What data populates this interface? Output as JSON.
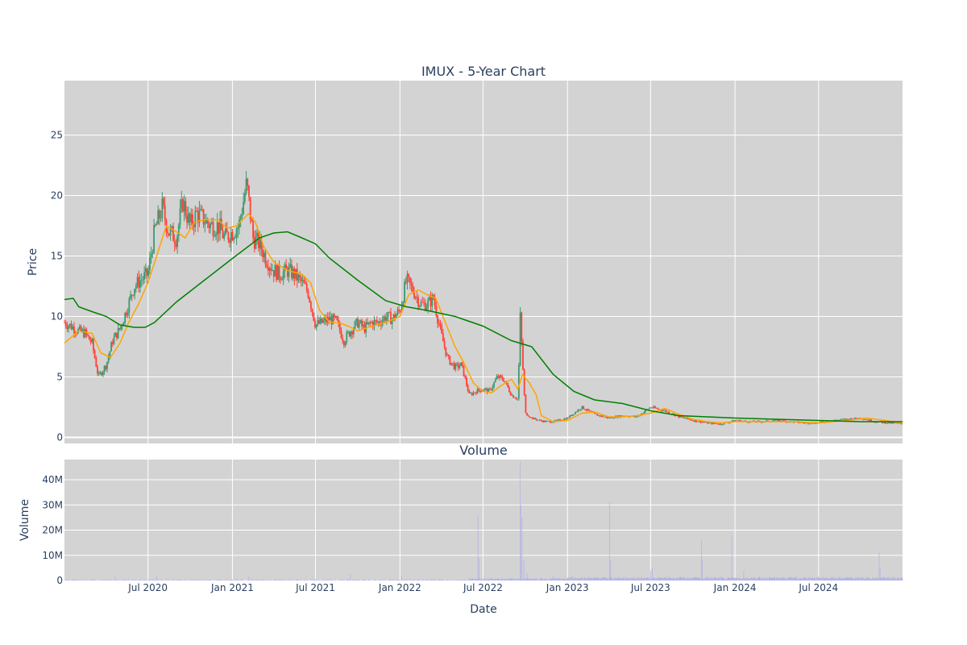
{
  "chart_data": [
    {
      "type": "candlestick",
      "title": "IMUX - 5-Year Chart",
      "xlabel": "",
      "ylabel": "Price",
      "ylim": [
        -0.5,
        29.5
      ],
      "yticks": [
        0,
        5,
        10,
        15,
        20,
        25
      ],
      "xticks": [
        "Jul 2020",
        "Jan 2021",
        "Jul 2021",
        "Jan 2022",
        "Jul 2022",
        "Jan 2023",
        "Jul 2023",
        "Jan 2024",
        "Jul 2024"
      ],
      "grid": true,
      "up_color": "#3d9970",
      "down_color": "#ff4136",
      "background": "#d3d3d3",
      "close_path": [
        [
          "2020-01-01",
          9.5
        ],
        [
          "2020-01-15",
          9.2
        ],
        [
          "2020-02-01",
          8.8
        ],
        [
          "2020-02-15",
          8.6
        ],
        [
          "2020-03-01",
          7.8
        ],
        [
          "2020-03-15",
          5.0
        ],
        [
          "2020-04-01",
          6.0
        ],
        [
          "2020-04-15",
          8.0
        ],
        [
          "2020-05-01",
          9.0
        ],
        [
          "2020-05-15",
          10.5
        ],
        [
          "2020-06-01",
          12.5
        ],
        [
          "2020-06-15",
          13.0
        ],
        [
          "2020-07-01",
          13.5
        ],
        [
          "2020-07-15",
          17.0
        ],
        [
          "2020-08-01",
          19.0
        ],
        [
          "2020-08-15",
          17.0
        ],
        [
          "2020-09-01",
          16.5
        ],
        [
          "2020-09-15",
          19.5
        ],
        [
          "2020-10-01",
          17.5
        ],
        [
          "2020-10-15",
          18.5
        ],
        [
          "2020-11-01",
          18.0
        ],
        [
          "2020-11-15",
          17.5
        ],
        [
          "2020-12-01",
          17.5
        ],
        [
          "2020-12-15",
          16.5
        ],
        [
          "2021-01-01",
          17.0
        ],
        [
          "2021-01-15",
          17.5
        ],
        [
          "2021-02-01",
          21.0
        ],
        [
          "2021-02-15",
          16.5
        ],
        [
          "2021-03-01",
          16.0
        ],
        [
          "2021-03-15",
          14.8
        ],
        [
          "2021-04-01",
          13.8
        ],
        [
          "2021-04-15",
          13.5
        ],
        [
          "2021-05-01",
          13.8
        ],
        [
          "2021-05-15",
          13.5
        ],
        [
          "2021-06-01",
          12.8
        ],
        [
          "2021-06-15",
          12.0
        ],
        [
          "2021-07-01",
          9.3
        ],
        [
          "2021-07-15",
          9.5
        ],
        [
          "2021-08-01",
          9.8
        ],
        [
          "2021-08-15",
          9.6
        ],
        [
          "2021-09-01",
          8.0
        ],
        [
          "2021-09-15",
          8.8
        ],
        [
          "2021-10-01",
          9.5
        ],
        [
          "2021-10-15",
          9.0
        ],
        [
          "2021-11-01",
          9.5
        ],
        [
          "2021-11-15",
          9.5
        ],
        [
          "2021-12-01",
          10.0
        ],
        [
          "2021-12-15",
          9.8
        ],
        [
          "2022-01-01",
          10.5
        ],
        [
          "2022-01-15",
          13.0
        ],
        [
          "2022-02-01",
          12.0
        ],
        [
          "2022-02-15",
          11.0
        ],
        [
          "2022-03-01",
          11.0
        ],
        [
          "2022-03-15",
          11.5
        ],
        [
          "2022-04-01",
          8.5
        ],
        [
          "2022-04-15",
          6.5
        ],
        [
          "2022-05-01",
          5.8
        ],
        [
          "2022-05-15",
          6.0
        ],
        [
          "2022-06-01",
          3.5
        ],
        [
          "2022-06-15",
          3.8
        ],
        [
          "2022-07-01",
          4.0
        ],
        [
          "2022-07-15",
          3.8
        ],
        [
          "2022-08-01",
          5.0
        ],
        [
          "2022-08-15",
          4.8
        ],
        [
          "2022-09-01",
          3.5
        ],
        [
          "2022-09-15",
          3.2
        ],
        [
          "2022-09-20",
          10.0
        ],
        [
          "2022-10-01",
          2.0
        ],
        [
          "2022-10-15",
          1.6
        ],
        [
          "2022-11-01",
          1.4
        ],
        [
          "2022-11-15",
          1.3
        ],
        [
          "2022-12-01",
          1.3
        ],
        [
          "2023-01-01",
          1.6
        ],
        [
          "2023-02-01",
          2.5
        ],
        [
          "2023-03-01",
          1.9
        ],
        [
          "2023-04-01",
          1.6
        ],
        [
          "2023-05-01",
          1.8
        ],
        [
          "2023-06-01",
          1.7
        ],
        [
          "2023-07-01",
          2.5
        ],
        [
          "2023-08-01",
          2.2
        ],
        [
          "2023-09-01",
          1.7
        ],
        [
          "2023-10-01",
          1.4
        ],
        [
          "2023-11-01",
          1.2
        ],
        [
          "2023-12-01",
          1.1
        ],
        [
          "2024-01-01",
          1.4
        ],
        [
          "2024-02-01",
          1.3
        ],
        [
          "2024-03-01",
          1.3
        ],
        [
          "2024-04-01",
          1.4
        ],
        [
          "2024-05-01",
          1.3
        ],
        [
          "2024-06-01",
          1.2
        ],
        [
          "2024-07-01",
          1.2
        ],
        [
          "2024-08-01",
          1.4
        ],
        [
          "2024-09-01",
          1.5
        ],
        [
          "2024-10-01",
          1.6
        ],
        [
          "2024-11-01",
          1.3
        ],
        [
          "2024-12-01",
          1.2
        ],
        [
          "2024-12-31",
          1.1
        ]
      ],
      "series": [
        {
          "color": "#ffa500",
          "points": [
            [
              "2020-01-01",
              7.8
            ],
            [
              "2020-02-01",
              8.8
            ],
            [
              "2020-03-01",
              8.6
            ],
            [
              "2020-03-20",
              7.0
            ],
            [
              "2020-04-10",
              6.6
            ],
            [
              "2020-05-01",
              7.8
            ],
            [
              "2020-05-20",
              9.5
            ],
            [
              "2020-06-10",
              11.0
            ],
            [
              "2020-07-01",
              12.8
            ],
            [
              "2020-07-20",
              15.0
            ],
            [
              "2020-08-10",
              17.5
            ],
            [
              "2020-09-01",
              17.0
            ],
            [
              "2020-09-20",
              16.5
            ],
            [
              "2020-10-10",
              17.8
            ],
            [
              "2020-11-01",
              18.0
            ],
            [
              "2020-12-01",
              18.0
            ],
            [
              "2020-12-20",
              17.3
            ],
            [
              "2021-01-10",
              17.5
            ],
            [
              "2021-02-05",
              18.5
            ],
            [
              "2021-02-20",
              17.8
            ],
            [
              "2021-03-10",
              15.8
            ],
            [
              "2021-04-01",
              14.5
            ],
            [
              "2021-05-01",
              13.8
            ],
            [
              "2021-06-01",
              13.5
            ],
            [
              "2021-06-20",
              12.8
            ],
            [
              "2021-07-10",
              10.5
            ],
            [
              "2021-08-01",
              9.5
            ],
            [
              "2021-08-20",
              9.5
            ],
            [
              "2021-09-10",
              9.2
            ],
            [
              "2021-10-01",
              8.8
            ],
            [
              "2021-11-01",
              9.2
            ],
            [
              "2021-12-01",
              9.5
            ],
            [
              "2022-01-01",
              10.0
            ],
            [
              "2022-01-20",
              11.8
            ],
            [
              "2022-02-10",
              12.2
            ],
            [
              "2022-03-01",
              11.8
            ],
            [
              "2022-03-20",
              11.5
            ],
            [
              "2022-04-10",
              9.5
            ],
            [
              "2022-05-01",
              7.5
            ],
            [
              "2022-05-20",
              6.2
            ],
            [
              "2022-06-10",
              4.5
            ],
            [
              "2022-07-01",
              3.8
            ],
            [
              "2022-07-20",
              3.7
            ],
            [
              "2022-08-10",
              4.3
            ],
            [
              "2022-09-01",
              4.8
            ],
            [
              "2022-09-15",
              4.0
            ],
            [
              "2022-09-25",
              5.2
            ],
            [
              "2022-10-10",
              4.5
            ],
            [
              "2022-10-25",
              3.5
            ],
            [
              "2022-11-05",
              1.8
            ],
            [
              "2022-12-01",
              1.3
            ],
            [
              "2023-01-01",
              1.4
            ],
            [
              "2023-02-01",
              2.0
            ],
            [
              "2023-03-01",
              2.1
            ],
            [
              "2023-04-01",
              1.7
            ],
            [
              "2023-05-01",
              1.7
            ],
            [
              "2023-06-01",
              1.8
            ],
            [
              "2023-07-01",
              2.0
            ],
            [
              "2023-08-01",
              2.4
            ],
            [
              "2023-09-01",
              1.9
            ],
            [
              "2023-10-01",
              1.5
            ],
            [
              "2023-11-01",
              1.3
            ],
            [
              "2023-12-01",
              1.2
            ],
            [
              "2024-01-01",
              1.3
            ],
            [
              "2024-03-01",
              1.3
            ],
            [
              "2024-05-01",
              1.3
            ],
            [
              "2024-07-01",
              1.2
            ],
            [
              "2024-09-01",
              1.4
            ],
            [
              "2024-10-15",
              1.6
            ],
            [
              "2024-12-31",
              1.2
            ]
          ]
        },
        {
          "color": "#008000",
          "points": [
            [
              "2020-01-01",
              11.4
            ],
            [
              "2020-01-20",
              11.5
            ],
            [
              "2020-02-01",
              10.8
            ],
            [
              "2020-03-01",
              10.4
            ],
            [
              "2020-04-01",
              10.0
            ],
            [
              "2020-05-01",
              9.3
            ],
            [
              "2020-06-01",
              9.1
            ],
            [
              "2020-06-25",
              9.1
            ],
            [
              "2020-07-15",
              9.5
            ],
            [
              "2020-09-01",
              11.2
            ],
            [
              "2020-11-01",
              13.0
            ],
            [
              "2021-01-01",
              14.8
            ],
            [
              "2021-03-01",
              16.5
            ],
            [
              "2021-04-01",
              16.9
            ],
            [
              "2021-05-01",
              17.0
            ],
            [
              "2021-06-01",
              16.5
            ],
            [
              "2021-07-01",
              16.0
            ],
            [
              "2021-08-01",
              14.8
            ],
            [
              "2021-10-01",
              13.0
            ],
            [
              "2021-12-01",
              11.3
            ],
            [
              "2022-01-15",
              10.8
            ],
            [
              "2022-03-01",
              10.5
            ],
            [
              "2022-05-01",
              10.0
            ],
            [
              "2022-07-01",
              9.2
            ],
            [
              "2022-09-01",
              8.0
            ],
            [
              "2022-10-15",
              7.5
            ],
            [
              "2022-12-01",
              5.2
            ],
            [
              "2023-01-15",
              3.8
            ],
            [
              "2023-03-01",
              3.1
            ],
            [
              "2023-05-01",
              2.8
            ],
            [
              "2023-07-01",
              2.2
            ],
            [
              "2023-09-01",
              1.8
            ],
            [
              "2023-11-01",
              1.7
            ],
            [
              "2024-01-01",
              1.6
            ],
            [
              "2024-04-01",
              1.5
            ],
            [
              "2024-07-01",
              1.4
            ],
            [
              "2024-10-01",
              1.3
            ],
            [
              "2024-12-31",
              1.3
            ]
          ]
        }
      ]
    },
    {
      "type": "bar",
      "title": "Volume",
      "xlabel": "Date",
      "ylabel": "Volume",
      "ylim": [
        0,
        48000000
      ],
      "yticks": [
        0,
        10000000,
        20000000,
        30000000,
        40000000
      ],
      "ytick_labels": [
        "0",
        "10M",
        "20M",
        "30M",
        "40M"
      ],
      "xticks": [
        "Jul 2020",
        "Jan 2021",
        "Jul 2021",
        "Jan 2022",
        "Jul 2022",
        "Jan 2023",
        "Jul 2023",
        "Jan 2024",
        "Jul 2024"
      ],
      "bar_color": "#b0b0e8",
      "background": "#d3d3d3",
      "spikes": [
        [
          "2020-04-20",
          1500000
        ],
        [
          "2020-07-20",
          2000000
        ],
        [
          "2021-02-05",
          1500000
        ],
        [
          "2021-09-15",
          2500000
        ],
        [
          "2022-01-05",
          1800000
        ],
        [
          "2022-06-20",
          26000000
        ],
        [
          "2022-06-22",
          9000000
        ],
        [
          "2022-09-20",
          47000000
        ],
        [
          "2022-09-22",
          30000000
        ],
        [
          "2022-09-24",
          25000000
        ],
        [
          "2022-09-28",
          8000000
        ],
        [
          "2022-10-05",
          3000000
        ],
        [
          "2022-12-01",
          2000000
        ],
        [
          "2023-01-10",
          2000000
        ],
        [
          "2023-04-03",
          31000000
        ],
        [
          "2023-04-05",
          8000000
        ],
        [
          "2023-07-01",
          4000000
        ],
        [
          "2023-07-05",
          5000000
        ],
        [
          "2023-10-20",
          16000000
        ],
        [
          "2023-10-22",
          8000000
        ],
        [
          "2023-12-25",
          18000000
        ],
        [
          "2024-01-20",
          4000000
        ],
        [
          "2024-05-15",
          1500000
        ],
        [
          "2024-11-10",
          11000000
        ],
        [
          "2024-11-12",
          5000000
        ]
      ]
    }
  ]
}
